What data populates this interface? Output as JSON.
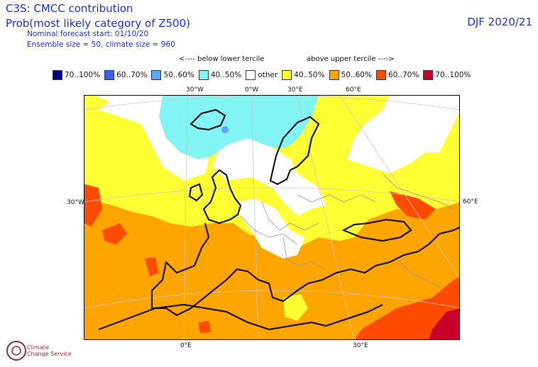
{
  "header": {
    "title": "C3S: CMCC contribution",
    "subtitle": "Prob(most likely category of Z500)",
    "nominal_start": "Nominal forecast start: 01/10/20",
    "ensemble": "Ensemble size = 50, climate size = 960",
    "season": "DJF 2020/21"
  },
  "terciles": {
    "below": "<---- below lower tercile",
    "above": "above upper tercile ---->"
  },
  "legend": [
    {
      "label": "70..100%",
      "color": "#00008b"
    },
    {
      "label": "60..70%",
      "color": "#3a5ff5"
    },
    {
      "label": "50..60%",
      "color": "#5aa8f7"
    },
    {
      "label": "40..50%",
      "color": "#82f4f4"
    },
    {
      "label": "other",
      "color": "#ffffff"
    },
    {
      "label": "40..50%",
      "color": "#ffff33"
    },
    {
      "label": "50..60%",
      "color": "#ffa500"
    },
    {
      "label": "60..70%",
      "color": "#ff4b00"
    },
    {
      "label": "70..100%",
      "color": "#c8002b"
    }
  ],
  "map_labels": {
    "top": [
      "30°W",
      "0°W",
      "30°E",
      "60°E"
    ],
    "left": "30°W",
    "right": "60°E",
    "bottom": [
      "0°E",
      "30°E"
    ]
  },
  "logo": {
    "line1": "Climate",
    "line2": "Change Service"
  }
}
